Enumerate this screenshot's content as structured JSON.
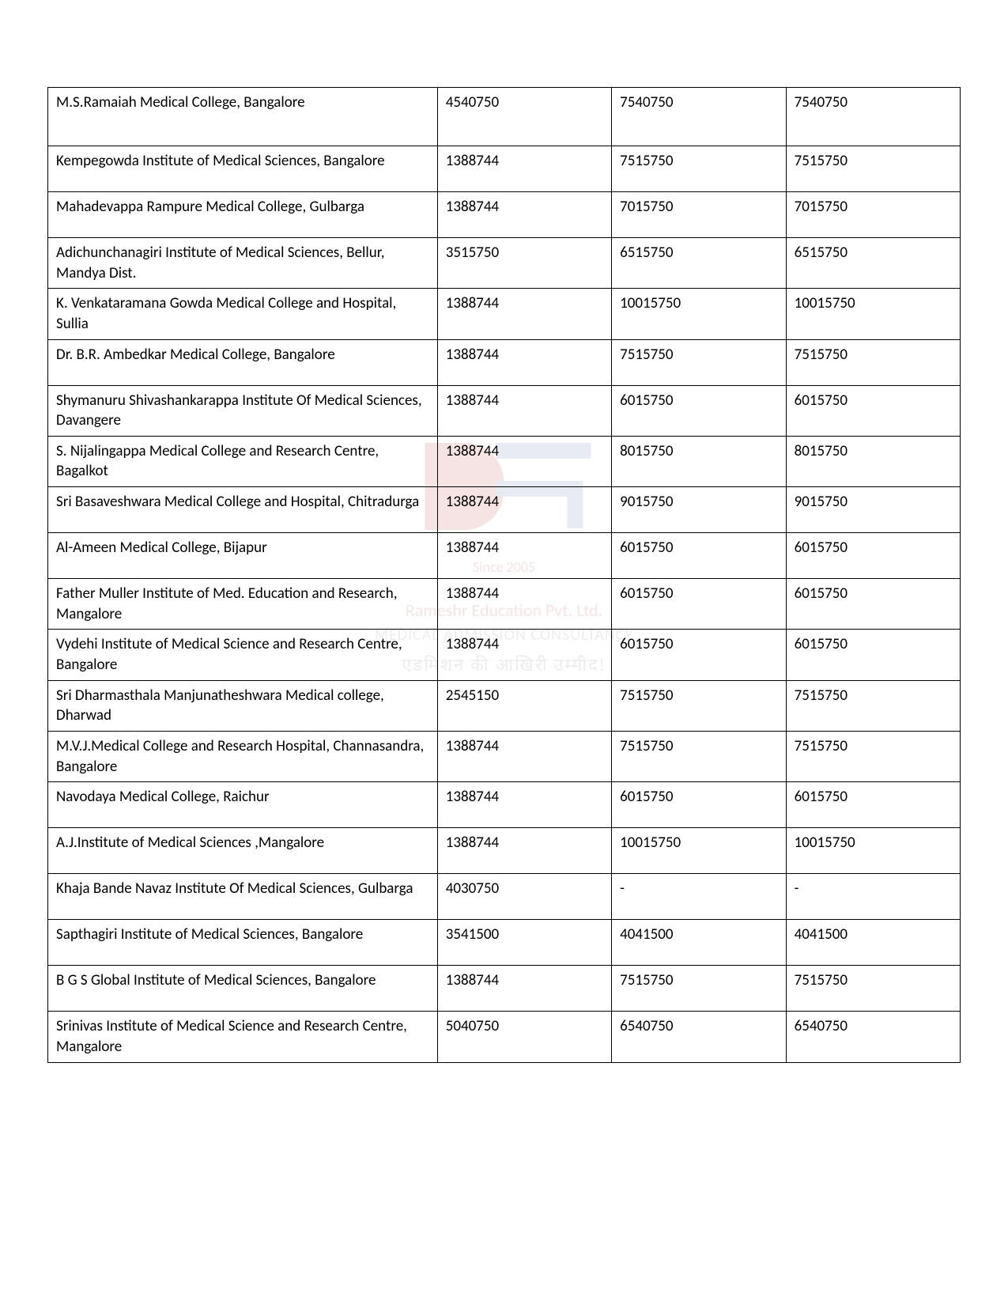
{
  "watermark": {
    "since": "Since 2005",
    "brand": "Rameshr Education Pvt. Ltd.",
    "sub": "MEDICAL ADMISSION CONSULTANCY",
    "tagline": "एडमिशन की आखिरी उम्मीद!"
  },
  "table": {
    "rows": [
      {
        "name": "M.S.Ramaiah Medical College, Bangalore",
        "c1": "4540750",
        "c2": "7540750",
        "c3": "7540750",
        "height": "tall"
      },
      {
        "name": "Kempegowda Institute of Medical Sciences, Bangalore",
        "c1": "1388744",
        "c2": "7515750",
        "c3": "7515750",
        "height": "medium"
      },
      {
        "name": "Mahadevappa Rampure Medical College, Gulbarga",
        "c1": "1388744",
        "c2": "7015750",
        "c3": "7015750",
        "height": "medium"
      },
      {
        "name": "Adichunchanagiri Institute of Medical Sciences, Bellur, Mandya Dist.",
        "c1": "3515750",
        "c2": "6515750",
        "c3": "6515750",
        "height": "medium"
      },
      {
        "name": "K. Venkataramana Gowda Medical College and Hospital, Sullia",
        "c1": "1388744",
        "c2": "10015750",
        "c3": "10015750",
        "height": "medium"
      },
      {
        "name": "Dr. B.R. Ambedkar Medical College, Bangalore",
        "c1": "1388744",
        "c2": "7515750",
        "c3": "7515750",
        "height": "medium"
      },
      {
        "name": "Shymanuru Shivashankarappa Institute Of Medical Sciences, Davangere",
        "c1": "1388744",
        "c2": "6015750",
        "c3": "6015750",
        "height": "medium"
      },
      {
        "name": "S. Nijalingappa Medical College and Research Centre, Bagalkot",
        "c1": "1388744",
        "c2": "8015750",
        "c3": "8015750",
        "height": "medium"
      },
      {
        "name": "Sri Basaveshwara Medical College and Hospital, Chitradurga",
        "c1": "1388744",
        "c2": "9015750",
        "c3": "9015750",
        "height": "medium"
      },
      {
        "name": "Al-Ameen Medical College, Bijapur",
        "c1": "1388744",
        "c2": "6015750",
        "c3": "6015750",
        "height": "medium"
      },
      {
        "name": "Father Muller Institute of Med. Education and Research, Mangalore",
        "c1": "1388744",
        "c2": "6015750",
        "c3": "6015750",
        "height": "medium"
      },
      {
        "name": "Vydehi Institute of Medical Science and Research Centre, Bangalore",
        "c1": "1388744",
        "c2": "6015750",
        "c3": "6015750",
        "height": "medium"
      },
      {
        "name": "Sri Dharmasthala Manjunatheshwara Medical college, Dharwad",
        "c1": "2545150",
        "c2": "7515750",
        "c3": "7515750",
        "height": "medium"
      },
      {
        "name": "M.V.J.Medical College and Research Hospital, Channasandra, Bangalore",
        "c1": "1388744",
        "c2": "7515750",
        "c3": "7515750",
        "height": "medium"
      },
      {
        "name": "Navodaya Medical College, Raichur",
        "c1": "1388744",
        "c2": "6015750",
        "c3": "6015750",
        "height": "medium"
      },
      {
        "name": "A.J.Institute of Medical Sciences ,Mangalore",
        "c1": "1388744",
        "c2": "10015750",
        "c3": "10015750",
        "height": "medium"
      },
      {
        "name": "Khaja Bande Navaz Institute Of Medical Sciences, Gulbarga",
        "c1": "4030750",
        "c2": "-",
        "c3": "-",
        "height": "medium"
      },
      {
        "name": "Sapthagiri Institute of Medical Sciences, Bangalore",
        "c1": "3541500",
        "c2": "4041500",
        "c3": "4041500",
        "height": "medium"
      },
      {
        "name": "B G S Global Institute of Medical Sciences, Bangalore",
        "c1": "1388744",
        "c2": "7515750",
        "c3": "7515750",
        "height": "medium"
      },
      {
        "name": "Srinivas Institute of Medical Science and Research Centre, Mangalore",
        "c1": "5040750",
        "c2": "6540750",
        "c3": "6540750",
        "height": "medium"
      }
    ]
  }
}
